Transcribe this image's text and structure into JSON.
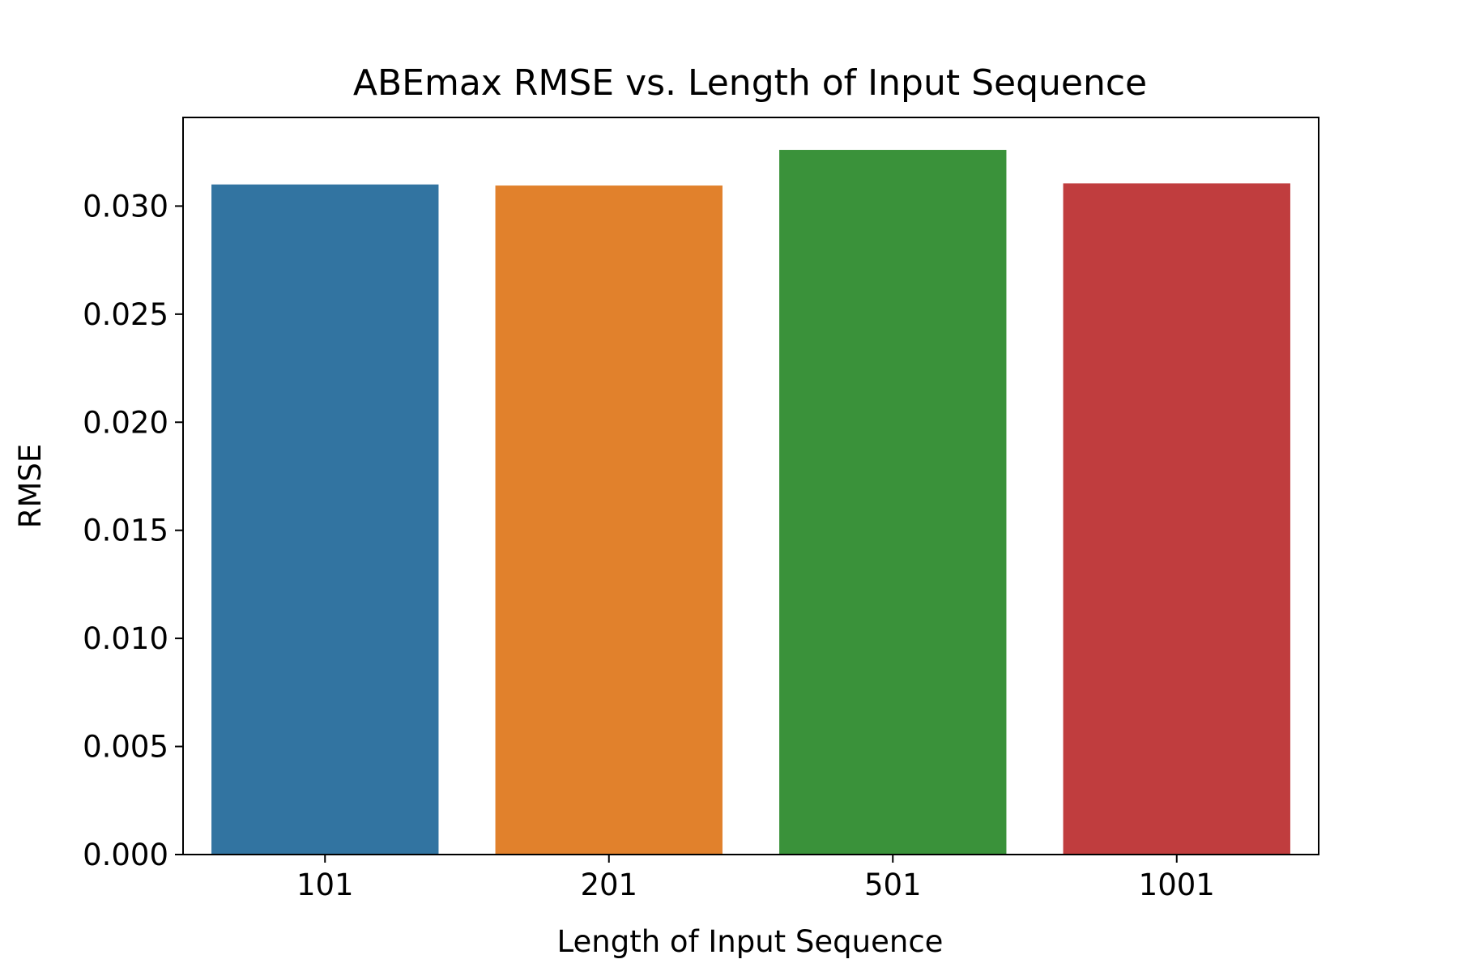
{
  "chart_data": {
    "type": "bar",
    "title": "ABEmax RMSE vs. Length of Input Sequence",
    "xlabel": "Length of Input Sequence",
    "ylabel": "RMSE",
    "categories": [
      "101",
      "201",
      "501",
      "1001"
    ],
    "values": [
      0.031,
      0.03095,
      0.0326,
      0.03105
    ],
    "colors": [
      "#3274a1",
      "#e1812c",
      "#3a923a",
      "#c03d3e"
    ],
    "ylim": [
      0,
      0.0341
    ],
    "yticks": [
      0.0,
      0.005,
      0.01,
      0.015,
      0.02,
      0.025,
      0.03
    ],
    "ytick_labels": [
      "0.000",
      "0.005",
      "0.010",
      "0.015",
      "0.020",
      "0.025",
      "0.030"
    ],
    "grid": false,
    "legend": "none"
  }
}
